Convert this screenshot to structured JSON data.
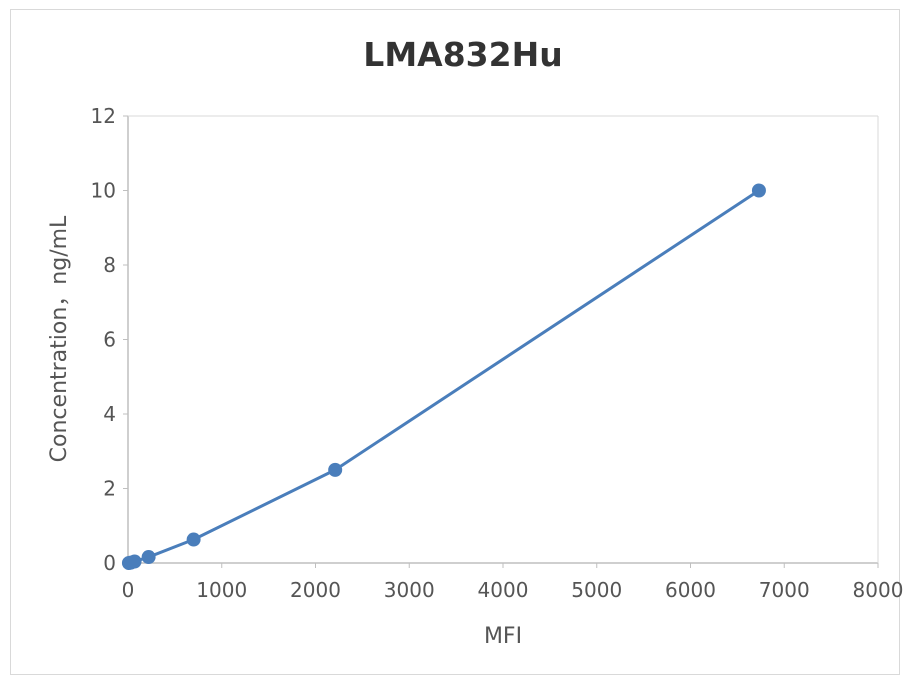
{
  "chart_data": {
    "type": "line",
    "title": "LMA832Hu",
    "xlabel": "MFI",
    "ylabel": "Concentration，ng/mL",
    "xlim": [
      0,
      8000
    ],
    "ylim": [
      0,
      12
    ],
    "x_ticks": [
      "0",
      "1000",
      "2000",
      "3000",
      "4000",
      "5000",
      "6000",
      "7000",
      "8000"
    ],
    "y_ticks": [
      "0",
      "2",
      "4",
      "6",
      "8",
      "10",
      "12"
    ],
    "grid": false,
    "legend": "none",
    "series": [
      {
        "color": "#4a7ebb",
        "x": [
          10,
          30,
          70,
          220,
          700,
          2210,
          6730
        ],
        "y": [
          0,
          0.01,
          0.04,
          0.16,
          0.63,
          2.5,
          10
        ]
      }
    ]
  }
}
